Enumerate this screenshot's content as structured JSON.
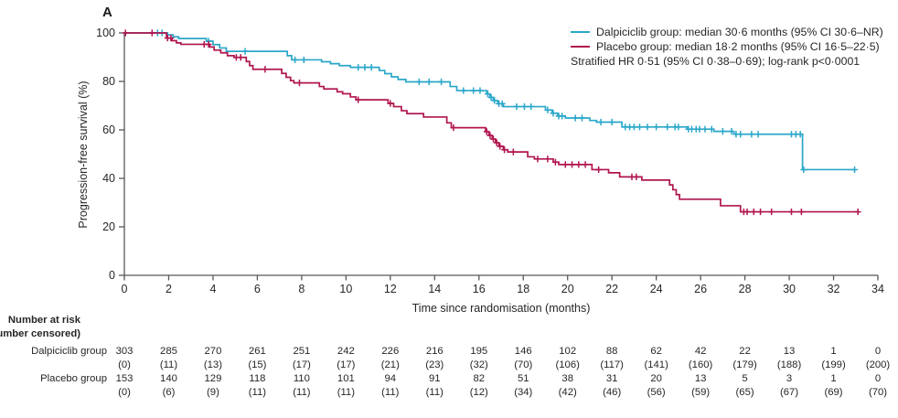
{
  "panel_label": "A",
  "legend": {
    "entries": [
      {
        "label": "Dalpiciclib group: median 30·6 months (95% CI 30·6–NR)",
        "color": "#2BA7C9"
      },
      {
        "label": "Placebo group: median 18·2 months (95% CI 16·5–22·5)",
        "color": "#B0154F"
      }
    ],
    "annotation": "Stratified HR 0·51 (95% CI 0·38–0·69); log-rank p<0·0001"
  },
  "chart_data": {
    "type": "line",
    "subtype": "kaplan-meier-step",
    "title": "A",
    "xlabel": "Time since randomisation (months)",
    "ylabel": "Progression-free survival (%)",
    "xlim": [
      0,
      34
    ],
    "ylim": [
      0,
      100
    ],
    "x_ticks": [
      0,
      2,
      4,
      6,
      8,
      10,
      12,
      14,
      16,
      18,
      20,
      22,
      24,
      26,
      28,
      30,
      32,
      34
    ],
    "y_ticks": [
      0,
      20,
      40,
      60,
      80,
      100
    ],
    "grid": false,
    "legend_position": "top-right",
    "axis_color": "#58585A",
    "series": [
      {
        "name": "Dalpiciclib group",
        "color": "#2BA7C9",
        "end": 32.95,
        "steps": [
          [
            0,
            100
          ],
          [
            1.95,
            99.2
          ],
          [
            2.2,
            98.4
          ],
          [
            2.45,
            97.7
          ],
          [
            3.7,
            96.6
          ],
          [
            4.0,
            95.2
          ],
          [
            4.3,
            93.8
          ],
          [
            4.6,
            92.4
          ],
          [
            7.35,
            90.6
          ],
          [
            7.55,
            88.9
          ],
          [
            8.9,
            88.1
          ],
          [
            9.3,
            87.3
          ],
          [
            9.7,
            86.5
          ],
          [
            10.2,
            85.8
          ],
          [
            11.5,
            84.5
          ],
          [
            11.75,
            83.2
          ],
          [
            12.05,
            81.9
          ],
          [
            12.35,
            80.8
          ],
          [
            12.7,
            79.8
          ],
          [
            14.7,
            77.9
          ],
          [
            15.0,
            76.2
          ],
          [
            16.35,
            74.8
          ],
          [
            16.5,
            73.4
          ],
          [
            16.65,
            72.1
          ],
          [
            16.85,
            70.8
          ],
          [
            17.1,
            69.6
          ],
          [
            19.0,
            68.2
          ],
          [
            19.3,
            66.9
          ],
          [
            19.55,
            65.7
          ],
          [
            19.9,
            64.9
          ],
          [
            21.0,
            63.9
          ],
          [
            21.3,
            63.2
          ],
          [
            22.45,
            61.2
          ],
          [
            25.4,
            60.3
          ],
          [
            26.6,
            59.4
          ],
          [
            27.5,
            58.2
          ],
          [
            30.6,
            43.6
          ]
        ],
        "censors": [
          1.5,
          1.7,
          3.8,
          5.45,
          7.7,
          8.1,
          10.55,
          10.85,
          11.15,
          13.3,
          13.75,
          14.3,
          15.3,
          15.75,
          16.05,
          16.4,
          16.55,
          16.7,
          16.9,
          17.05,
          17.7,
          18.05,
          18.35,
          19.1,
          19.35,
          19.6,
          19.75,
          20.35,
          20.65,
          21.5,
          22.0,
          22.6,
          22.8,
          23.0,
          23.25,
          23.6,
          24.0,
          24.5,
          24.85,
          25.0,
          25.45,
          25.6,
          25.8,
          25.95,
          26.2,
          26.5,
          27.0,
          27.4,
          27.6,
          27.8,
          28.3,
          28.6,
          30.1,
          30.3,
          30.5,
          30.65,
          32.95
        ]
      },
      {
        "name": "Placebo group",
        "color": "#B0154F",
        "end": 33.15,
        "steps": [
          [
            0,
            100
          ],
          [
            1.9,
            97.9
          ],
          [
            2.15,
            96.8
          ],
          [
            2.35,
            95.9
          ],
          [
            2.55,
            95.3
          ],
          [
            3.85,
            94.2
          ],
          [
            4.05,
            92.9
          ],
          [
            4.35,
            91.8
          ],
          [
            4.65,
            90.6
          ],
          [
            4.95,
            89.9
          ],
          [
            5.5,
            88.2
          ],
          [
            5.65,
            86.5
          ],
          [
            5.8,
            85.0
          ],
          [
            7.1,
            83.3
          ],
          [
            7.3,
            81.7
          ],
          [
            7.5,
            80.3
          ],
          [
            7.65,
            79.4
          ],
          [
            8.8,
            77.9
          ],
          [
            9.0,
            76.9
          ],
          [
            9.6,
            75.7
          ],
          [
            9.85,
            74.9
          ],
          [
            10.2,
            73.6
          ],
          [
            10.45,
            72.4
          ],
          [
            11.9,
            70.9
          ],
          [
            12.15,
            69.6
          ],
          [
            12.5,
            67.9
          ],
          [
            12.75,
            66.7
          ],
          [
            13.5,
            65.3
          ],
          [
            14.55,
            62.9
          ],
          [
            14.75,
            60.9
          ],
          [
            16.3,
            59.3
          ],
          [
            16.45,
            57.7
          ],
          [
            16.6,
            56.2
          ],
          [
            16.75,
            54.7
          ],
          [
            16.9,
            53.2
          ],
          [
            17.1,
            51.8
          ],
          [
            17.3,
            50.9
          ],
          [
            18.2,
            48.9
          ],
          [
            18.5,
            48.0
          ],
          [
            19.35,
            46.7
          ],
          [
            19.6,
            45.7
          ],
          [
            21.1,
            43.6
          ],
          [
            21.85,
            42.3
          ],
          [
            22.35,
            40.6
          ],
          [
            23.35,
            39.3
          ],
          [
            24.6,
            37.3
          ],
          [
            24.75,
            35.3
          ],
          [
            24.9,
            33.3
          ],
          [
            25.05,
            31.4
          ],
          [
            26.9,
            28.7
          ],
          [
            27.8,
            26.2
          ]
        ],
        "censors": [
          0.05,
          1.25,
          1.95,
          2.1,
          3.6,
          3.8,
          5.05,
          5.25,
          6.35,
          7.9,
          10.55,
          12.0,
          14.85,
          16.35,
          16.5,
          16.65,
          16.8,
          16.95,
          17.15,
          17.55,
          18.65,
          19.1,
          19.45,
          19.9,
          20.2,
          20.5,
          20.8,
          21.4,
          22.9,
          23.1,
          27.95,
          28.1,
          28.4,
          28.7,
          29.2,
          30.1,
          30.55,
          33.1
        ]
      }
    ]
  },
  "risk_table": {
    "header_line1": "Number at risk",
    "header_line2": "(number censored)",
    "rows": [
      {
        "label": "Dalpiciclib group",
        "counts": [
          "303",
          "285",
          "270",
          "261",
          "251",
          "242",
          "226",
          "216",
          "195",
          "146",
          "102",
          "88",
          "62",
          "42",
          "22",
          "13",
          "1",
          "0"
        ],
        "censored": [
          "(0)",
          "(11)",
          "(13)",
          "(15)",
          "(17)",
          "(17)",
          "(21)",
          "(23)",
          "(32)",
          "(70)",
          "(106)",
          "(117)",
          "(141)",
          "(160)",
          "(179)",
          "(188)",
          "(199)",
          "(200)"
        ]
      },
      {
        "label": "Placebo group",
        "counts": [
          "153",
          "140",
          "129",
          "118",
          "110",
          "101",
          "94",
          "91",
          "82",
          "51",
          "38",
          "31",
          "20",
          "13",
          "5",
          "3",
          "1",
          "0"
        ],
        "censored": [
          "(0)",
          "(6)",
          "(9)",
          "(11)",
          "(11)",
          "(11)",
          "(11)",
          "(11)",
          "(12)",
          "(34)",
          "(42)",
          "(46)",
          "(56)",
          "(59)",
          "(65)",
          "(67)",
          "(69)",
          "(70)"
        ]
      }
    ]
  }
}
